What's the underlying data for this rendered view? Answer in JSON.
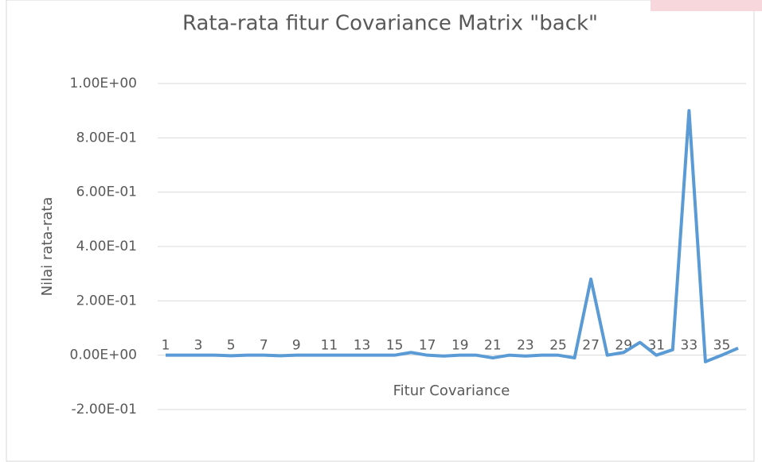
{
  "chart_data": {
    "type": "line",
    "title": "Rata-rata fitur Covariance Matrix \"back\"",
    "x_label": "Fitur Covariance",
    "y_label": "Nilai rata-rata",
    "categories": [
      "1",
      null,
      "3",
      null,
      "5",
      null,
      "7",
      null,
      "9",
      null,
      "11",
      null,
      "13",
      null,
      "15",
      null,
      "17",
      null,
      "19",
      null,
      "21",
      null,
      "23",
      null,
      "25",
      null,
      "27",
      null,
      "29",
      null,
      "31",
      null,
      "33",
      null,
      "35",
      null
    ],
    "series": [
      {
        "name": "back",
        "color": "#5b9bd5",
        "values": [
          0,
          0,
          0,
          0,
          -0.002,
          0,
          0,
          -0.002,
          0,
          0,
          0,
          0,
          0,
          0,
          0,
          0.01,
          0,
          -0.003,
          0,
          0,
          -0.01,
          0,
          -0.003,
          0,
          0,
          -0.01,
          0.28,
          0,
          0.01,
          0.047,
          0,
          0.02,
          0.9,
          -0.024,
          0,
          0.026
        ]
      }
    ],
    "ylim": [
      -0.2,
      1.0
    ],
    "yticks": [
      {
        "value": -0.2,
        "label": "-2.00E-01"
      },
      {
        "value": 0,
        "label": "0.00E+00"
      },
      {
        "value": 0.2,
        "label": "2.00E-01"
      },
      {
        "value": 0.4,
        "label": "4.00E-01"
      },
      {
        "value": 0.6,
        "label": "6.00E-01"
      },
      {
        "value": 0.8,
        "label": "8.00E-01"
      },
      {
        "value": 1.0,
        "label": "1.00E+00"
      }
    ],
    "grid": true
  }
}
